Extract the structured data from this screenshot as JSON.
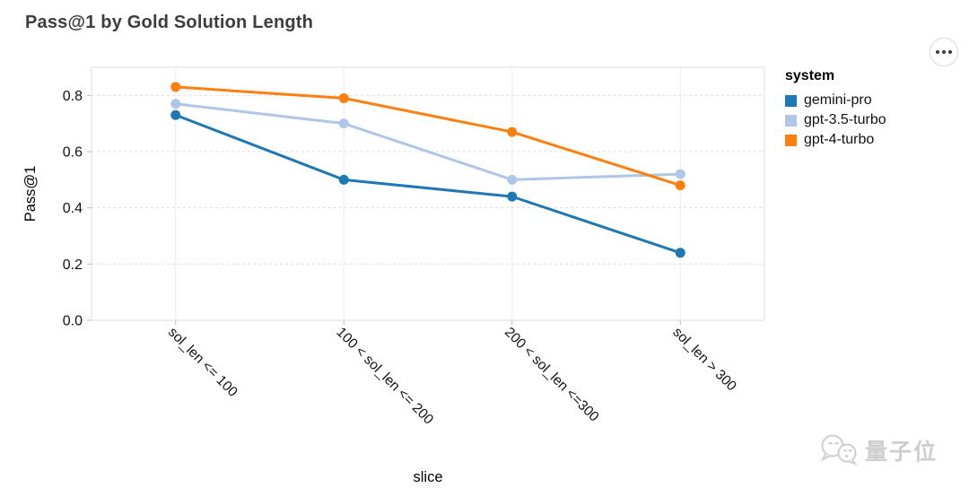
{
  "title": "Pass@1 by Gold Solution Length",
  "more_button": {
    "icon": "ellipsis-icon"
  },
  "legend": {
    "title": "system",
    "entries": [
      {
        "label": "gemini-pro",
        "color": "#1f77b4"
      },
      {
        "label": "gpt-3.5-turbo",
        "color": "#aec7e8"
      },
      {
        "label": "gpt-4-turbo",
        "color": "#ff7f0e"
      }
    ]
  },
  "watermark": {
    "text": "量子位",
    "icon": "chat-bubbles-icon"
  },
  "chart_data": {
    "type": "line",
    "title": "Pass@1 by Gold Solution Length",
    "xlabel": "slice",
    "ylabel": "Pass@1",
    "categories": [
      "sol_len <= 100",
      "100 < sol_len <= 200",
      "200 < sol_len <=300",
      "sol_len > 300"
    ],
    "series": [
      {
        "name": "gemini-pro",
        "color": "#1f77b4",
        "values": [
          0.73,
          0.5,
          0.44,
          0.24
        ]
      },
      {
        "name": "gpt-3.5-turbo",
        "color": "#aec7e8",
        "values": [
          0.77,
          0.7,
          0.5,
          0.52
        ]
      },
      {
        "name": "gpt-4-turbo",
        "color": "#ff7f0e",
        "values": [
          0.83,
          0.79,
          0.67,
          0.48
        ]
      }
    ],
    "y_ticks": [
      "0.0",
      "0.2",
      "0.4",
      "0.6",
      "0.8"
    ],
    "ylim": [
      0,
      0.9
    ],
    "grid": true,
    "legend_position": "right",
    "x_label_angle": 45
  }
}
